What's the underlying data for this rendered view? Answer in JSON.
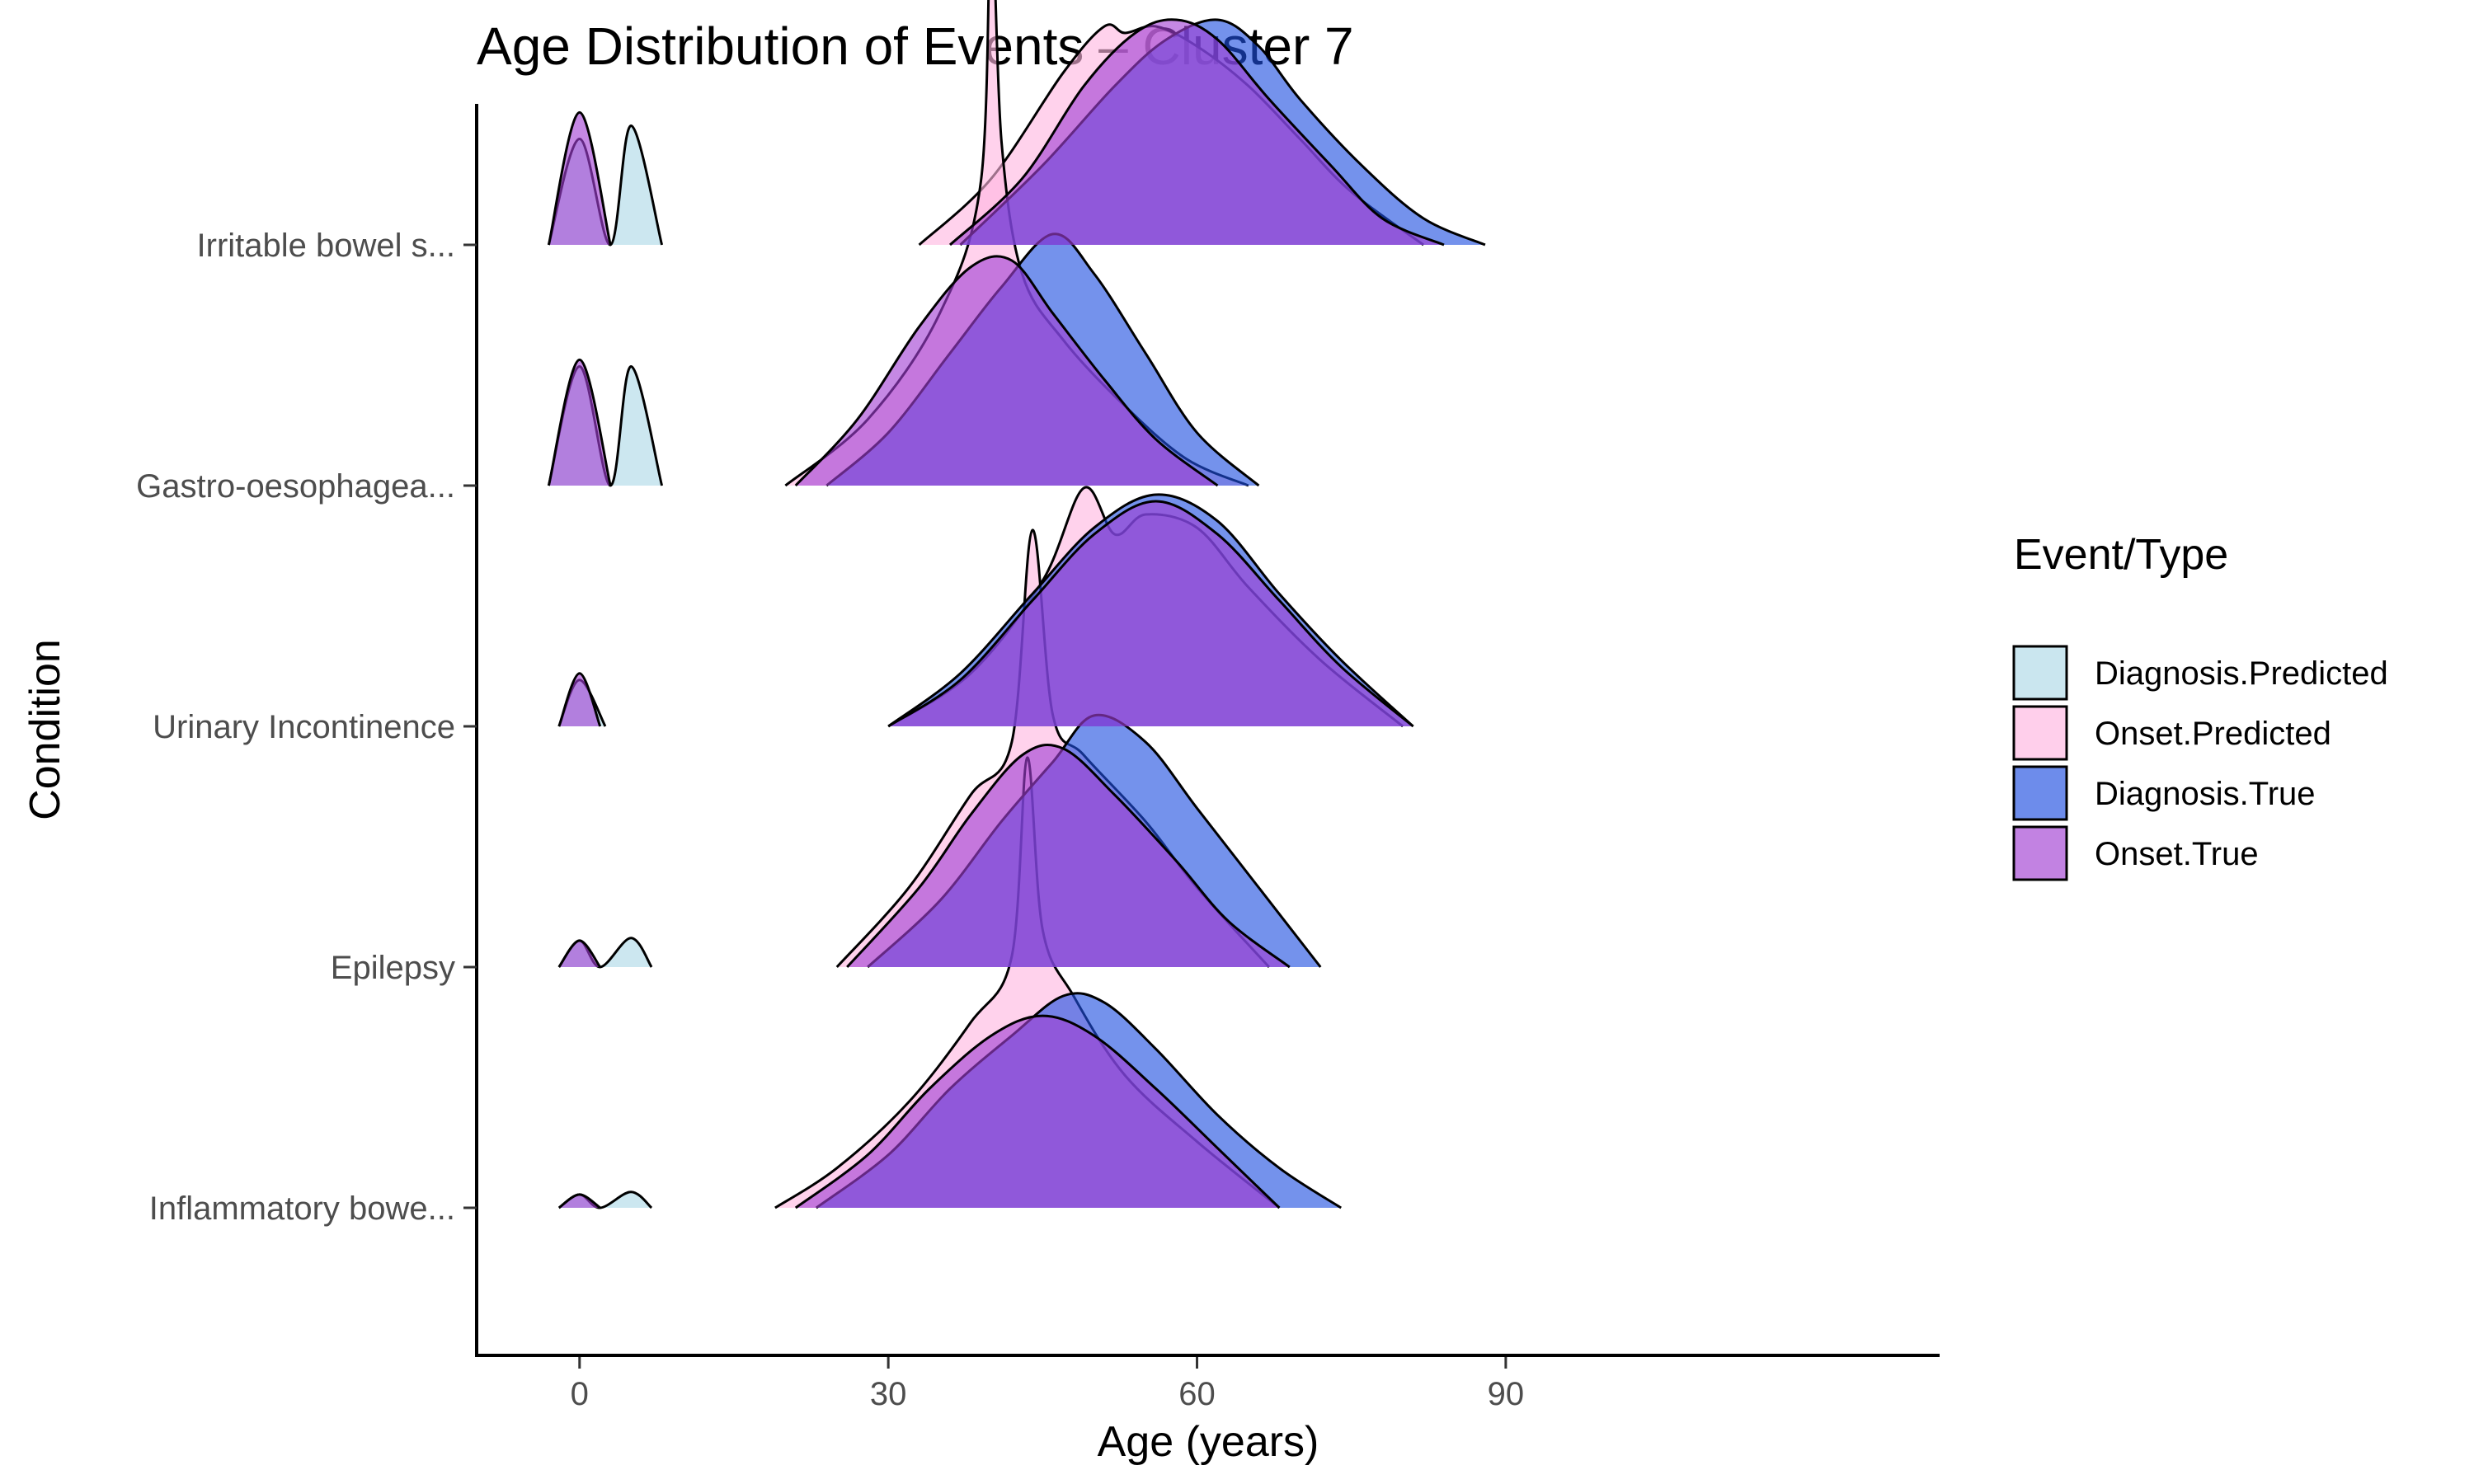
{
  "chart_data": {
    "type": "ridgeline",
    "title": "Age Distribution of Events – Cluster 7",
    "xlabel": "Age (years)",
    "ylabel": "Condition",
    "xlim": [
      -10,
      132
    ],
    "x_ticks": [
      0,
      30,
      60,
      90
    ],
    "grid": false,
    "legend": {
      "title": "Event/Type",
      "position": "right",
      "entries": [
        "Diagnosis.Predicted",
        "Onset.Predicted",
        "Diagnosis.True",
        "Onset.True"
      ]
    },
    "colors": {
      "Diagnosis.Predicted": "#add8e6",
      "Onset.Predicted": "#ffb6e1",
      "Diagnosis.True": "#1e4fe0",
      "Onset.True": "#a23fd3"
    },
    "categories": [
      "Irritable bowel s...",
      "Gastro-oesophagea...",
      "Urinary Incontinence",
      "Epilepsy",
      "Inflammatory bowe..."
    ],
    "series": [
      {
        "name": "Diagnosis.Predicted",
        "groups": [
          [
            [
              -3,
              0
            ],
            [
              0,
              0.8
            ],
            [
              3,
              0
            ],
            [
              5,
              0.9
            ],
            [
              8,
              0
            ]
          ],
          [
            [
              -3,
              0
            ],
            [
              0,
              0.9
            ],
            [
              3,
              0
            ],
            [
              5,
              0.9
            ],
            [
              8,
              0
            ]
          ],
          [
            [
              -2,
              0
            ],
            [
              0,
              0.35
            ],
            [
              2.5,
              0
            ]
          ],
          [
            [
              -2,
              0
            ],
            [
              0,
              0.2
            ],
            [
              2,
              0
            ],
            [
              5,
              0.22
            ],
            [
              7,
              0
            ]
          ],
          [
            [
              -2,
              0
            ],
            [
              0,
              0.1
            ],
            [
              2,
              0
            ],
            [
              5,
              0.12
            ],
            [
              7,
              0
            ]
          ]
        ]
      },
      {
        "name": "Onset.Predicted",
        "groups": [
          [
            [
              33,
              0
            ],
            [
              40,
              0.5
            ],
            [
              47,
              1.3
            ],
            [
              51,
              1.65
            ],
            [
              53,
              1.6
            ],
            [
              56,
              1.65
            ],
            [
              60,
              1.5
            ],
            [
              65,
              1.2
            ],
            [
              70,
              0.8
            ],
            [
              75,
              0.4
            ],
            [
              82,
              0
            ]
          ],
          [
            [
              20,
              0
            ],
            [
              28,
              0.5
            ],
            [
              35,
              1.3
            ],
            [
              39,
              2.3
            ],
            [
              40,
              4.3
            ],
            [
              41,
              2.6
            ],
            [
              43,
              1.6
            ],
            [
              47,
              1.1
            ],
            [
              53,
              0.6
            ],
            [
              59,
              0.2
            ],
            [
              65,
              0
            ]
          ],
          [
            [
              30,
              0
            ],
            [
              38,
              0.4
            ],
            [
              45,
              1.1
            ],
            [
              49,
              1.8
            ],
            [
              52,
              1.45
            ],
            [
              55,
              1.6
            ],
            [
              60,
              1.5
            ],
            [
              65,
              1.05
            ],
            [
              72,
              0.5
            ],
            [
              80,
              0
            ]
          ],
          [
            [
              25,
              0
            ],
            [
              32,
              0.6
            ],
            [
              38,
              1.3
            ],
            [
              42,
              1.7
            ],
            [
              44,
              3.3
            ],
            [
              46,
              1.9
            ],
            [
              49,
              1.6
            ],
            [
              55,
              1.1
            ],
            [
              60,
              0.6
            ],
            [
              67,
              0
            ]
          ],
          [
            [
              19,
              0
            ],
            [
              25,
              0.3
            ],
            [
              32,
              0.8
            ],
            [
              38,
              1.4
            ],
            [
              42,
              1.9
            ],
            [
              43.5,
              3.4
            ],
            [
              45,
              2.1
            ],
            [
              48,
              1.6
            ],
            [
              53,
              1.0
            ],
            [
              60,
              0.5
            ],
            [
              68,
              0
            ]
          ]
        ]
      },
      {
        "name": "Diagnosis.True",
        "groups": [
          [
            [
              37,
              0
            ],
            [
              45,
              0.6
            ],
            [
              52,
              1.2
            ],
            [
              57,
              1.55
            ],
            [
              62,
              1.7
            ],
            [
              66,
              1.5
            ],
            [
              70,
              1.1
            ],
            [
              76,
              0.6
            ],
            [
              82,
              0.2
            ],
            [
              88,
              0
            ]
          ],
          [
            [
              24,
              0
            ],
            [
              30,
              0.4
            ],
            [
              36,
              1.0
            ],
            [
              41,
              1.5
            ],
            [
              46,
              1.9
            ],
            [
              50,
              1.6
            ],
            [
              55,
              1.0
            ],
            [
              60,
              0.4
            ],
            [
              66,
              0
            ]
          ],
          [
            [
              30,
              0
            ],
            [
              37,
              0.4
            ],
            [
              44,
              1.0
            ],
            [
              50,
              1.5
            ],
            [
              56,
              1.75
            ],
            [
              62,
              1.55
            ],
            [
              68,
              1.0
            ],
            [
              74,
              0.5
            ],
            [
              81,
              0
            ]
          ],
          [
            [
              28,
              0
            ],
            [
              35,
              0.5
            ],
            [
              41,
              1.1
            ],
            [
              46,
              1.55
            ],
            [
              50,
              1.9
            ],
            [
              55,
              1.7
            ],
            [
              60,
              1.2
            ],
            [
              66,
              0.6
            ],
            [
              72,
              0
            ]
          ],
          [
            [
              23,
              0
            ],
            [
              30,
              0.4
            ],
            [
              36,
              0.9
            ],
            [
              42,
              1.3
            ],
            [
              47,
              1.6
            ],
            [
              51,
              1.55
            ],
            [
              56,
              1.2
            ],
            [
              62,
              0.7
            ],
            [
              68,
              0.3
            ],
            [
              74,
              0
            ]
          ]
        ]
      },
      {
        "name": "Onset.True",
        "groups": [
          [
            [
              -3,
              0
            ],
            [
              0,
              1.0
            ],
            [
              3,
              0
            ]
          ],
          [
            [
              -3,
              0
            ],
            [
              0,
              0.95
            ],
            [
              3,
              0
            ]
          ],
          [
            [
              -2,
              0
            ],
            [
              0,
              0.4
            ],
            [
              2,
              0
            ]
          ],
          [
            [
              -2,
              0
            ],
            [
              0,
              0.2
            ],
            [
              2,
              0
            ]
          ],
          [
            [
              -2,
              0
            ],
            [
              0,
              0.1
            ],
            [
              2,
              0
            ]
          ]
        ]
      },
      {
        "name": "Onset.True",
        "groups": [
          [
            [
              36,
              0
            ],
            [
              43,
              0.5
            ],
            [
              49,
              1.2
            ],
            [
              54,
              1.6
            ],
            [
              58,
              1.7
            ],
            [
              62,
              1.55
            ],
            [
              67,
              1.1
            ],
            [
              73,
              0.6
            ],
            [
              78,
              0.2
            ],
            [
              84,
              0
            ]
          ],
          [
            [
              21,
              0
            ],
            [
              27,
              0.5
            ],
            [
              33,
              1.2
            ],
            [
              38,
              1.65
            ],
            [
              42,
              1.7
            ],
            [
              46,
              1.3
            ],
            [
              51,
              0.8
            ],
            [
              56,
              0.35
            ],
            [
              62,
              0
            ]
          ],
          [
            [
              30,
              0
            ],
            [
              37,
              0.35
            ],
            [
              44,
              0.95
            ],
            [
              50,
              1.45
            ],
            [
              56,
              1.7
            ],
            [
              62,
              1.45
            ],
            [
              68,
              0.95
            ],
            [
              74,
              0.45
            ],
            [
              81,
              0
            ]
          ],
          [
            [
              26,
              0
            ],
            [
              33,
              0.6
            ],
            [
              38,
              1.15
            ],
            [
              43,
              1.6
            ],
            [
              47,
              1.65
            ],
            [
              52,
              1.3
            ],
            [
              58,
              0.8
            ],
            [
              63,
              0.35
            ],
            [
              69,
              0
            ]
          ],
          [
            [
              21,
              0
            ],
            [
              28,
              0.4
            ],
            [
              34,
              0.9
            ],
            [
              40,
              1.3
            ],
            [
              45,
              1.45
            ],
            [
              50,
              1.3
            ],
            [
              56,
              0.9
            ],
            [
              62,
              0.45
            ],
            [
              68,
              0
            ]
          ]
        ]
      }
    ]
  }
}
